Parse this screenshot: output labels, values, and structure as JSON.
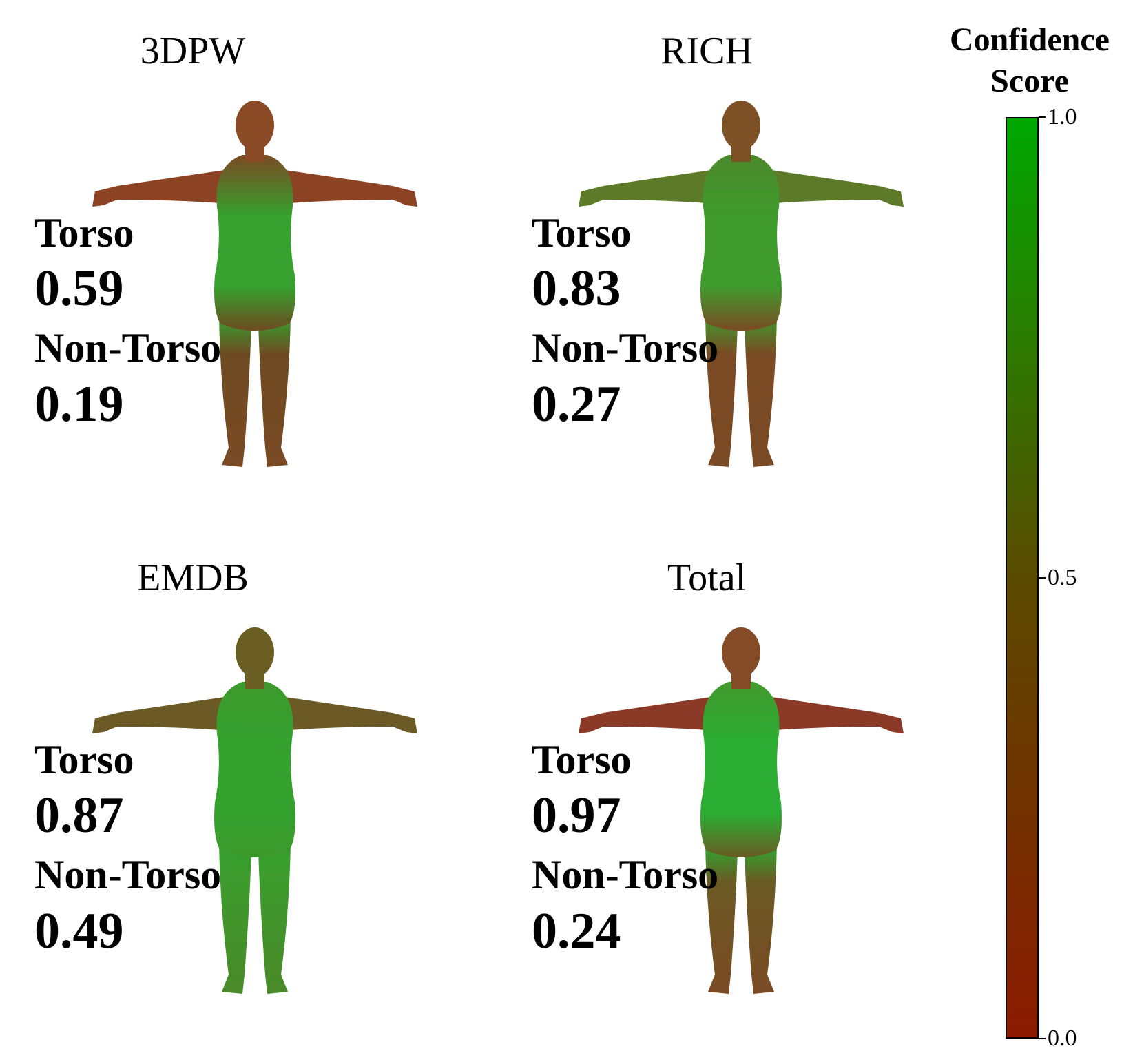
{
  "panels": [
    {
      "title": "3DPW",
      "torso_label": "Torso",
      "torso_value": "0.59",
      "nontorso_label": "Non-Torso",
      "nontorso_value": "0.19",
      "colors": {
        "head": "#8a4a26",
        "chest": "#7a4a24",
        "belly": "#36a12e",
        "arms": "#8b4324",
        "legs": "#6e4a22",
        "feet": "#7a4a24"
      }
    },
    {
      "title": "RICH",
      "torso_label": "Torso",
      "torso_value": "0.83",
      "nontorso_label": "Non-Torso",
      "nontorso_value": "0.27",
      "colors": {
        "head": "#7d5026",
        "chest": "#4c8a2c",
        "belly": "#3f9a2c",
        "arms": "#5d7a28",
        "legs": "#7a4a24",
        "feet": "#7a4a24"
      }
    },
    {
      "title": "EMDB",
      "torso_label": "Torso",
      "torso_value": "0.87",
      "nontorso_label": "Non-Torso",
      "nontorso_value": "0.49",
      "colors": {
        "head": "#6a5e22",
        "chest": "#3d9a2c",
        "belly": "#34a02e",
        "arms": "#6b5a26",
        "legs": "#3d9a2c",
        "feet": "#4a8a2a"
      }
    },
    {
      "title": "Total",
      "torso_label": "Torso",
      "torso_value": "0.97",
      "nontorso_label": "Non-Torso",
      "nontorso_value": "0.24",
      "colors": {
        "head": "#854a26",
        "chest": "#42992d",
        "belly": "#2aad32",
        "arms": "#8a3a26",
        "legs": "#6a5a24",
        "feet": "#7a4a24"
      }
    }
  ],
  "colorbar": {
    "title_line1": "Confidence",
    "title_line2": "Score",
    "min_color": "#8b1a00",
    "mid_color": "#5a4a00",
    "max_color": "#00a800",
    "ticks": [
      {
        "value": 1.0,
        "label": "1.0"
      },
      {
        "value": 0.5,
        "label": "0.5"
      },
      {
        "value": 0.0,
        "label": "0.0"
      }
    ]
  }
}
